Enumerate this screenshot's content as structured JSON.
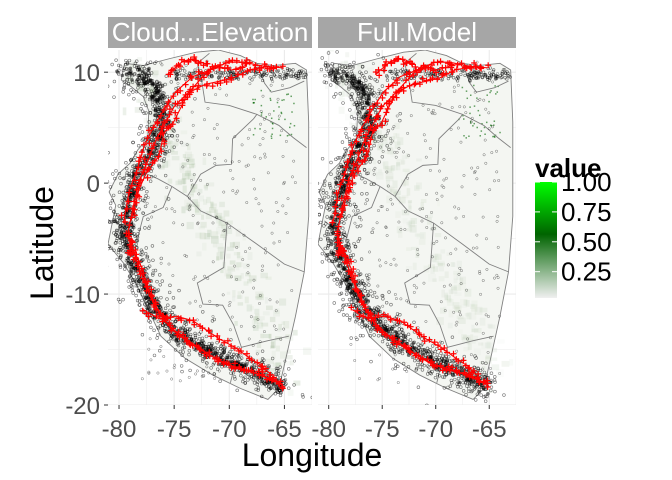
{
  "chart_data": {
    "type": "scatter",
    "title": "",
    "xlabel": "Longitude",
    "ylabel": "Latitude",
    "xlim": [
      -81,
      -62.5
    ],
    "ylim": [
      -20,
      12
    ],
    "x_ticks": [
      -80,
      -75,
      -70,
      -65
    ],
    "x_tick_labels": [
      "-80",
      "-75",
      "-70",
      "-65"
    ],
    "y_ticks": [
      10,
      0,
      -10,
      -20
    ],
    "y_tick_labels": [
      "10",
      "0",
      "-10",
      "-20"
    ],
    "panels": [
      {
        "name": "Cloud...Elevation",
        "green_intensity": 0.35
      },
      {
        "name": "Full.Model",
        "green_intensity": 0.2
      }
    ],
    "legend": {
      "title": "value",
      "placement": "right",
      "breaks": [
        1.0,
        0.75,
        0.5,
        0.25
      ],
      "labels": [
        "1.00",
        "0.75",
        "0.50",
        "0.25"
      ],
      "color_low": "#f0f0f0",
      "color_mid": "#006400",
      "color_high": "#00ff00"
    },
    "grid": true,
    "point_color": "#000000",
    "red_marker_color": "#ff0000",
    "boundary_color": "#808080",
    "strip_color": "#a6a6a6",
    "panel_background": "#ffffff",
    "grid_color": "#ebebeb",
    "region_outline": [
      [
        -79.5,
        10.8
      ],
      [
        -77.8,
        10.6
      ],
      [
        -75.5,
        11.2
      ],
      [
        -73.0,
        11.8
      ],
      [
        -71.0,
        12.0
      ],
      [
        -69.0,
        11.5
      ],
      [
        -67.5,
        10.8
      ],
      [
        -66.0,
        10.6
      ],
      [
        -64.0,
        10.8
      ],
      [
        -63.0,
        10.2
      ],
      [
        -62.8,
        5.5
      ],
      [
        -62.8,
        -3.0
      ],
      [
        -63.2,
        -8.0
      ],
      [
        -64.0,
        -12.0
      ],
      [
        -64.8,
        -15.5
      ],
      [
        -65.5,
        -18.5
      ],
      [
        -66.5,
        -19.5
      ],
      [
        -69.0,
        -18.5
      ],
      [
        -71.5,
        -17.3
      ],
      [
        -74.0,
        -15.8
      ],
      [
        -76.2,
        -13.8
      ],
      [
        -77.3,
        -11.5
      ],
      [
        -78.5,
        -9.0
      ],
      [
        -79.6,
        -7.2
      ],
      [
        -81.0,
        -5.5
      ],
      [
        -80.6,
        -3.5
      ],
      [
        -80.3,
        -2.0
      ],
      [
        -80.9,
        -0.8
      ],
      [
        -80.1,
        0.8
      ],
      [
        -79.0,
        1.8
      ],
      [
        -78.3,
        3.0
      ],
      [
        -77.4,
        4.0
      ],
      [
        -77.3,
        6.5
      ],
      [
        -77.8,
        7.8
      ],
      [
        -78.9,
        8.7
      ],
      [
        -79.8,
        9.3
      ],
      [
        -79.5,
        10.8
      ]
    ],
    "borders": [
      [
        [
          -78.8,
          1.4
        ],
        [
          -76.5,
          0.4
        ],
        [
          -75.2,
          -0.3
        ],
        [
          -73.8,
          -1.2
        ],
        [
          -72.6,
          -2.5
        ],
        [
          -70.2,
          -3.6
        ]
      ],
      [
        [
          -80.4,
          -3.4
        ],
        [
          -79.1,
          -4.4
        ],
        [
          -78.3,
          -4.9
        ],
        [
          -77.8,
          -3.0
        ],
        [
          -76.0,
          -2.2
        ],
        [
          -75.2,
          -0.3
        ]
      ],
      [
        [
          -73.8,
          -1.2
        ],
        [
          -72.6,
          0.8
        ],
        [
          -71.2,
          1.6
        ],
        [
          -69.8,
          1.7
        ],
        [
          -69.7,
          4.0
        ],
        [
          -67.8,
          5.8
        ],
        [
          -67.5,
          6.2
        ],
        [
          -70.0,
          7.0
        ],
        [
          -72.2,
          7.3
        ],
        [
          -72.5,
          9.2
        ],
        [
          -72.9,
          10.8
        ],
        [
          -71.8,
          11.7
        ]
      ],
      [
        [
          -70.2,
          -3.6
        ],
        [
          -70.5,
          -7.6
        ],
        [
          -72.9,
          -9.0
        ],
        [
          -72.4,
          -10.9
        ],
        [
          -70.6,
          -11.0
        ],
        [
          -69.6,
          -12.8
        ],
        [
          -68.9,
          -14.8
        ],
        [
          -69.5,
          -16.4
        ],
        [
          -69.9,
          -18.0
        ]
      ],
      [
        [
          -70.2,
          -3.6
        ],
        [
          -67.5,
          -5.5
        ],
        [
          -65.0,
          -7.3
        ],
        [
          -63.2,
          -8.0
        ]
      ],
      [
        [
          -68.9,
          -14.8
        ],
        [
          -66.5,
          -14.2
        ],
        [
          -64.6,
          -13.8
        ]
      ],
      [
        [
          -67.5,
          6.2
        ],
        [
          -65.5,
          5.2
        ],
        [
          -64.2,
          4.1
        ],
        [
          -63.0,
          3.2
        ]
      ],
      [
        [
          -67.5,
          10.8
        ],
        [
          -66.8,
          9.0
        ],
        [
          -66.2,
          8.2
        ],
        [
          -64.5,
          8.6
        ],
        [
          -63.2,
          9.2
        ]
      ]
    ],
    "red_tracks": [
      [
        [
          -79.2,
          -4.5
        ],
        [
          -78.6,
          -1.6
        ],
        [
          -78.1,
          0.4
        ],
        [
          -77.3,
          2.2
        ],
        [
          -76.6,
          4.0
        ],
        [
          -75.7,
          5.6
        ],
        [
          -75.0,
          6.9
        ],
        [
          -73.8,
          8.1
        ],
        [
          -72.2,
          8.9
        ],
        [
          -70.8,
          9.2
        ],
        [
          -69.6,
          9.5
        ],
        [
          -68.2,
          10.2
        ],
        [
          -66.6,
          10.5
        ],
        [
          -65.2,
          10.4
        ]
      ],
      [
        [
          -79.6,
          -3.6
        ],
        [
          -79.1,
          -0.8
        ],
        [
          -78.3,
          1.4
        ],
        [
          -77.7,
          3.4
        ],
        [
          -76.9,
          5.0
        ],
        [
          -76.0,
          6.5
        ],
        [
          -74.9,
          8.2
        ],
        [
          -73.3,
          9.6
        ],
        [
          -71.5,
          10.3
        ],
        [
          -70.1,
          10.9
        ],
        [
          -68.7,
          10.9
        ],
        [
          -67.2,
          10.6
        ],
        [
          -65.9,
          10.4
        ]
      ],
      [
        [
          -78.8,
          -3.0
        ],
        [
          -78.2,
          -0.6
        ],
        [
          -77.5,
          1.0
        ],
        [
          -76.4,
          2.4
        ],
        [
          -75.9,
          4.6
        ],
        [
          -75.1,
          5.4
        ],
        [
          -74.2,
          7.2
        ],
        [
          -73.4,
          8.5
        ],
        [
          -72.1,
          9.9
        ],
        [
          -71.2,
          10.6
        ],
        [
          -69.8,
          10.2
        ],
        [
          -68.5,
          10.6
        ]
      ],
      [
        [
          -75.6,
          9.8
        ],
        [
          -74.8,
          10.5
        ],
        [
          -74.2,
          11.0
        ],
        [
          -73.3,
          11.2
        ],
        [
          -72.6,
          10.9
        ],
        [
          -72.0,
          10.7
        ]
      ],
      [
        [
          -79.0,
          -5.3
        ],
        [
          -78.4,
          -7.0
        ],
        [
          -77.8,
          -8.6
        ],
        [
          -77.2,
          -10.2
        ],
        [
          -76.3,
          -11.8
        ],
        [
          -75.2,
          -13.2
        ],
        [
          -73.8,
          -14.3
        ],
        [
          -72.3,
          -15.2
        ],
        [
          -70.6,
          -16.2
        ],
        [
          -69.0,
          -16.8
        ],
        [
          -67.3,
          -17.2
        ],
        [
          -65.8,
          -17.8
        ],
        [
          -65.0,
          -18.4
        ]
      ],
      [
        [
          -78.6,
          -6.2
        ],
        [
          -77.9,
          -7.7
        ],
        [
          -77.4,
          -9.4
        ],
        [
          -76.7,
          -11.0
        ],
        [
          -75.8,
          -12.5
        ],
        [
          -74.6,
          -13.6
        ],
        [
          -73.1,
          -14.6
        ],
        [
          -71.6,
          -15.6
        ],
        [
          -70.0,
          -16.4
        ],
        [
          -68.2,
          -16.9
        ],
        [
          -66.5,
          -17.6
        ],
        [
          -65.4,
          -18.0
        ]
      ],
      [
        [
          -77.8,
          -11.4
        ],
        [
          -76.4,
          -12.2
        ],
        [
          -74.8,
          -12.0
        ],
        [
          -73.3,
          -12.4
        ],
        [
          -72.0,
          -13.3
        ],
        [
          -70.8,
          -14.1
        ],
        [
          -69.5,
          -14.8
        ],
        [
          -68.1,
          -15.8
        ],
        [
          -67.0,
          -16.5
        ],
        [
          -66.2,
          -17.3
        ]
      ],
      [
        [
          -79.2,
          -4.5
        ],
        [
          -78.9,
          -5.5
        ],
        [
          -79.0,
          -6.4
        ],
        [
          -78.6,
          -6.2
        ]
      ]
    ]
  }
}
